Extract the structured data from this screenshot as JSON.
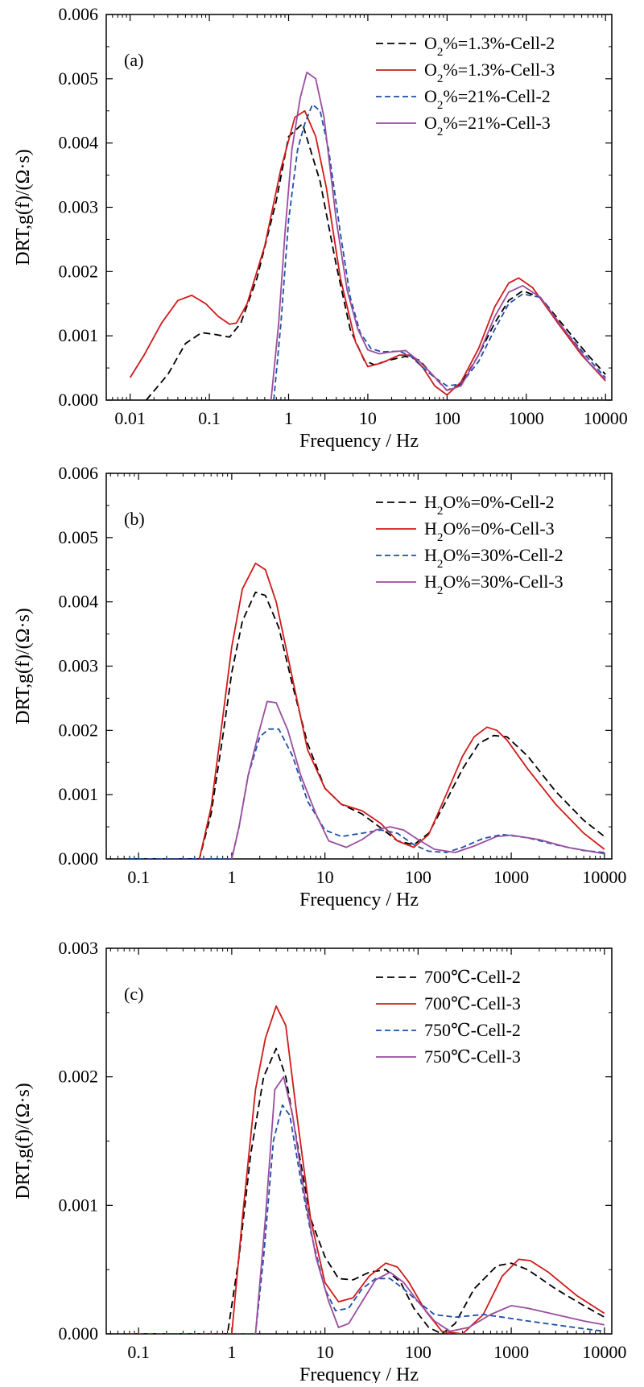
{
  "chart_data": [
    {
      "type": "line",
      "panel_label": "(a)",
      "xlabel": "Frequency / Hz",
      "ylabel": "DRT,g(f)/(Ω·s)",
      "xscale": "log",
      "xlim": [
        0.005,
        12000
      ],
      "ylim": [
        0,
        0.006
      ],
      "xticks": [
        0.01,
        0.1,
        1,
        10,
        100,
        1000,
        10000
      ],
      "xtick_labels": [
        "0.01",
        "0.1",
        "1",
        "10",
        "100",
        "1000",
        "10000"
      ],
      "yticks": [
        0,
        0.001,
        0.002,
        0.003,
        0.004,
        0.005,
        0.006
      ],
      "ytick_labels": [
        "0.000",
        "0.001",
        "0.002",
        "0.003",
        "0.004",
        "0.005",
        "0.006"
      ],
      "legend_position": "top-right",
      "series": [
        {
          "name": "O2%=1.3%-Cell-2",
          "legend": {
            "pre": "O",
            "sub": "2",
            "post": "%=1.3%-Cell-2"
          },
          "color": "#000000",
          "dash": "dashed",
          "x": [
            0.016,
            0.03,
            0.05,
            0.08,
            0.12,
            0.18,
            0.25,
            0.4,
            0.7,
            1.0,
            1.5,
            2.5,
            4,
            6,
            9,
            12,
            20,
            30,
            45,
            70,
            100,
            150,
            250,
            400,
            600,
            900,
            1500,
            3000,
            6000,
            10000
          ],
          "y": [
            0.0,
            0.0004,
            0.00088,
            0.00105,
            0.00102,
            0.00098,
            0.0012,
            0.0019,
            0.0031,
            0.0041,
            0.0043,
            0.0034,
            0.0021,
            0.0011,
            0.00062,
            0.00055,
            0.00063,
            0.00068,
            0.00062,
            0.00035,
            0.00015,
            0.00025,
            0.0007,
            0.0012,
            0.00155,
            0.0017,
            0.0016,
            0.00115,
            0.0007,
            0.0004
          ]
        },
        {
          "name": "O2%=1.3%-Cell-3",
          "legend": {
            "pre": "O",
            "sub": "2",
            "post": "%=1.3%-Cell-3"
          },
          "color": "#d11a1a",
          "dash": "solid",
          "x": [
            0.01,
            0.015,
            0.025,
            0.04,
            0.06,
            0.09,
            0.13,
            0.18,
            0.22,
            0.3,
            0.5,
            0.8,
            1.2,
            1.6,
            2.2,
            3,
            4.5,
            7,
            10,
            15,
            25,
            35,
            50,
            70,
            100,
            150,
            250,
            400,
            600,
            800,
            1200,
            2500,
            5000,
            10000
          ],
          "y": [
            0.00035,
            0.0007,
            0.0012,
            0.00155,
            0.00163,
            0.0015,
            0.0013,
            0.00118,
            0.0012,
            0.0015,
            0.0024,
            0.0036,
            0.0044,
            0.0045,
            0.0041,
            0.0033,
            0.0019,
            0.0009,
            0.00052,
            0.00058,
            0.0007,
            0.0007,
            0.0005,
            0.00022,
            8e-05,
            0.00028,
            0.0008,
            0.00145,
            0.00182,
            0.0019,
            0.00175,
            0.0012,
            0.0007,
            0.0003
          ]
        },
        {
          "name": "O2%=21%-Cell-2",
          "legend": {
            "pre": "O",
            "sub": "2",
            "post": "%=21%-Cell-2"
          },
          "color": "#1f4fa8",
          "dash": "dashed",
          "x": [
            0.65,
            0.8,
            1.0,
            1.3,
            1.6,
            2.0,
            2.5,
            3.2,
            4.5,
            6,
            8,
            11,
            15,
            25,
            35,
            50,
            70,
            100,
            150,
            250,
            400,
            600,
            900,
            1500,
            3000,
            6000,
            10000
          ],
          "y": [
            0.0,
            0.0012,
            0.0028,
            0.0039,
            0.0043,
            0.0046,
            0.0045,
            0.0039,
            0.0026,
            0.0016,
            0.00105,
            0.0008,
            0.00075,
            0.00076,
            0.00068,
            0.0005,
            0.00035,
            0.00022,
            0.00025,
            0.0006,
            0.0011,
            0.0015,
            0.00165,
            0.0016,
            0.0011,
            0.00065,
            0.00035
          ]
        },
        {
          "name": "O2%=21%-Cell-3",
          "legend": {
            "pre": "O",
            "sub": "2",
            "post": "%=21%-Cell-3"
          },
          "color": "#9a4d9e",
          "dash": "solid",
          "x": [
            0.6,
            0.75,
            0.9,
            1.1,
            1.4,
            1.7,
            2.2,
            2.8,
            4,
            5.5,
            7.5,
            10,
            14,
            20,
            30,
            45,
            65,
            100,
            150,
            250,
            400,
            600,
            900,
            1500,
            3000,
            6000,
            10000
          ],
          "y": [
            0.0,
            0.0012,
            0.0026,
            0.0039,
            0.0047,
            0.0051,
            0.005,
            0.0044,
            0.0028,
            0.0017,
            0.0011,
            0.00078,
            0.00072,
            0.00075,
            0.00077,
            0.0006,
            0.0004,
            0.00015,
            0.00022,
            0.0007,
            0.0013,
            0.00168,
            0.00178,
            0.0016,
            0.0011,
            0.0006,
            0.00032
          ]
        }
      ]
    },
    {
      "type": "line",
      "panel_label": "(b)",
      "xlabel": "Frequency / Hz",
      "ylabel": "DRT,g(f)/(Ω·s)",
      "xscale": "log",
      "xlim": [
        0.045,
        12000
      ],
      "ylim": [
        0,
        0.006
      ],
      "xticks": [
        0.1,
        1,
        10,
        100,
        1000,
        10000
      ],
      "xtick_labels": [
        "0.1",
        "1",
        "10",
        "100",
        "1000",
        "10000"
      ],
      "yticks": [
        0,
        0.001,
        0.002,
        0.003,
        0.004,
        0.005,
        0.006
      ],
      "ytick_labels": [
        "0.000",
        "0.001",
        "0.002",
        "0.003",
        "0.004",
        "0.005",
        "0.006"
      ],
      "legend_position": "top-right",
      "series": [
        {
          "name": "H2O%=0%-Cell-2",
          "legend": {
            "pre": "H",
            "sub": "2",
            "post": "O%=0%-Cell-2"
          },
          "color": "#000000",
          "dash": "dashed",
          "x": [
            0.08,
            0.2,
            0.45,
            0.6,
            0.8,
            1.0,
            1.3,
            1.8,
            2.3,
            3.2,
            4.5,
            6.5,
            10,
            15,
            25,
            40,
            60,
            90,
            130,
            200,
            300,
            450,
            650,
            900,
            1500,
            3000,
            6000,
            10000
          ],
          "y": [
            0.0,
            0.0,
            0.0,
            0.0007,
            0.0019,
            0.0029,
            0.0037,
            0.00415,
            0.0041,
            0.0036,
            0.0027,
            0.0018,
            0.0011,
            0.00085,
            0.0007,
            0.00048,
            0.00028,
            0.00022,
            0.0004,
            0.0009,
            0.0014,
            0.0018,
            0.00192,
            0.0019,
            0.0016,
            0.00105,
            0.0006,
            0.00035
          ]
        },
        {
          "name": "H2O%=0%-Cell-3",
          "legend": {
            "pre": "H",
            "sub": "2",
            "post": "O%=0%-Cell-3"
          },
          "color": "#d11a1a",
          "dash": "solid",
          "x": [
            0.45,
            0.6,
            0.8,
            1.0,
            1.3,
            1.8,
            2.3,
            3.0,
            4.5,
            6.5,
            10,
            15,
            25,
            40,
            60,
            90,
            130,
            200,
            300,
            400,
            550,
            700,
            900,
            1500,
            3000,
            6000,
            10000
          ],
          "y": [
            0.0,
            0.0008,
            0.0022,
            0.0033,
            0.0042,
            0.0046,
            0.0045,
            0.004,
            0.0028,
            0.0017,
            0.0011,
            0.00085,
            0.00075,
            0.00055,
            0.00028,
            0.00018,
            0.00038,
            0.001,
            0.0016,
            0.0019,
            0.00205,
            0.002,
            0.00185,
            0.0014,
            0.00085,
            0.0004,
            0.00015
          ]
        },
        {
          "name": "H2O%=30%-Cell-2",
          "legend": {
            "pre": "H",
            "sub": "2",
            "post": "O%=30%-Cell-2"
          },
          "color": "#1f4fa8",
          "dash": "dashed",
          "x": [
            0.08,
            0.5,
            1.0,
            1.2,
            1.5,
            2.0,
            2.5,
            3.2,
            4.5,
            6.5,
            10,
            15,
            25,
            40,
            60,
            90,
            130,
            200,
            300,
            500,
            800,
            1500,
            3000,
            6000,
            10000
          ],
          "y": [
            0.0,
            0.0,
            0.0,
            0.0005,
            0.0013,
            0.0019,
            0.00202,
            0.00202,
            0.0016,
            0.0009,
            0.00045,
            0.00035,
            0.0004,
            0.00045,
            0.0004,
            0.00022,
            0.00012,
            0.0001,
            0.00018,
            0.00032,
            0.00038,
            0.00033,
            0.00022,
            0.00013,
            0.0001
          ]
        },
        {
          "name": "H2O%=30%-Cell-3",
          "legend": {
            "pre": "H",
            "sub": "2",
            "post": "O%=30%-Cell-3"
          },
          "color": "#9a4d9e",
          "dash": "solid",
          "x": [
            1.0,
            1.2,
            1.5,
            1.9,
            2.4,
            3.0,
            4.0,
            5.5,
            8,
            11,
            17,
            25,
            35,
            50,
            70,
            100,
            150,
            250,
            400,
            700,
            1000,
            2000,
            4000,
            10000
          ],
          "y": [
            0.0,
            0.0005,
            0.0013,
            0.0019,
            0.00245,
            0.00243,
            0.002,
            0.0013,
            0.0007,
            0.00028,
            0.00018,
            0.0003,
            0.00045,
            0.0005,
            0.00045,
            0.0003,
            0.00015,
            0.0001,
            0.0002,
            0.00035,
            0.00037,
            0.0003,
            0.00018,
            8e-05
          ]
        }
      ]
    },
    {
      "type": "line",
      "panel_label": "(c)",
      "xlabel": "Frequency / Hz",
      "ylabel": "DRT,g(f)/(Ω·s)",
      "xscale": "log",
      "xlim": [
        0.045,
        12000
      ],
      "ylim": [
        0,
        0.003
      ],
      "xticks": [
        0.1,
        1,
        10,
        100,
        1000,
        10000
      ],
      "xtick_labels": [
        "0.1",
        "1",
        "10",
        "100",
        "1000",
        "10000"
      ],
      "yticks": [
        0,
        0.001,
        0.002,
        0.003
      ],
      "ytick_labels": [
        "0.000",
        "0.001",
        "0.002",
        "0.003"
      ],
      "legend_position": "top-right",
      "series": [
        {
          "name": "700℃-Cell-2",
          "legend": {
            "pre": "700℃-Cell-2",
            "sub": "",
            "post": ""
          },
          "color": "#000000",
          "dash": "dashed",
          "x": [
            0.08,
            0.5,
            0.9,
            1.2,
            1.6,
            2.2,
            3.0,
            3.8,
            5,
            7,
            10,
            14,
            20,
            30,
            45,
            65,
            90,
            130,
            180,
            250,
            400,
            700,
            1000,
            1500,
            3000,
            6000,
            10000
          ],
          "y": [
            0.0,
            0.0,
            0.0,
            0.0006,
            0.0014,
            0.002,
            0.00222,
            0.002,
            0.0015,
            0.0009,
            0.0006,
            0.00043,
            0.00042,
            0.00048,
            0.0005,
            0.0004,
            0.0002,
            5e-05,
            0.0,
            8e-05,
            0.00035,
            0.00053,
            0.00055,
            0.0005,
            0.00035,
            0.00022,
            0.00013
          ]
        },
        {
          "name": "700℃-Cell-3",
          "legend": {
            "pre": "700℃-Cell-3",
            "sub": "",
            "post": ""
          },
          "color": "#d11a1a",
          "dash": "solid",
          "x": [
            1.0,
            1.3,
            1.8,
            2.3,
            3.0,
            3.8,
            5,
            7,
            10,
            14,
            20,
            30,
            45,
            60,
            80,
            120,
            180,
            300,
            500,
            800,
            1200,
            1600,
            2500,
            5000,
            10000
          ],
          "y": [
            0.0,
            0.0009,
            0.0019,
            0.0023,
            0.00255,
            0.0024,
            0.0017,
            0.0009,
            0.0004,
            0.00025,
            0.00028,
            0.00045,
            0.00055,
            0.00052,
            0.0004,
            0.00018,
            2e-05,
            0.0,
            0.00015,
            0.00045,
            0.00058,
            0.00057,
            0.00048,
            0.0003,
            0.00016
          ]
        },
        {
          "name": "750℃-Cell-2",
          "legend": {
            "pre": "750℃-Cell-2",
            "sub": "",
            "post": ""
          },
          "color": "#1f4fa8",
          "dash": "dashed",
          "x": [
            0.08,
            1.0,
            1.8,
            2.2,
            2.8,
            3.5,
            4.2,
            5.5,
            7,
            10,
            13,
            18,
            25,
            35,
            50,
            70,
            100,
            150,
            250,
            500,
            800,
            1500,
            3000,
            6000,
            10000
          ],
          "y": [
            0.0,
            0.0,
            0.0,
            0.0006,
            0.0015,
            0.00178,
            0.0017,
            0.0012,
            0.0008,
            0.00035,
            0.00018,
            0.0002,
            0.00035,
            0.00043,
            0.00043,
            0.00035,
            0.00025,
            0.00015,
            0.00013,
            0.00015,
            0.00013,
            0.0001,
            7e-05,
            4e-05,
            2e-05
          ]
        },
        {
          "name": "750℃-Cell-3",
          "legend": {
            "pre": "750℃-Cell-3",
            "sub": "",
            "post": ""
          },
          "color": "#9a4d9e",
          "dash": "solid",
          "x": [
            1.8,
            2.3,
            2.9,
            3.6,
            4.5,
            6,
            8,
            11,
            14,
            18,
            25,
            35,
            50,
            70,
            100,
            150,
            220,
            350,
            600,
            1000,
            1500,
            3000,
            6000,
            10000
          ],
          "y": [
            0.0,
            0.0009,
            0.0019,
            0.002,
            0.0017,
            0.0011,
            0.0006,
            0.00025,
            5e-05,
            8e-05,
            0.00025,
            0.00042,
            0.00048,
            0.0004,
            0.00025,
            0.0001,
            2e-05,
            5e-05,
            0.00015,
            0.00022,
            0.0002,
            0.00015,
            0.0001,
            7e-05
          ]
        }
      ]
    }
  ]
}
